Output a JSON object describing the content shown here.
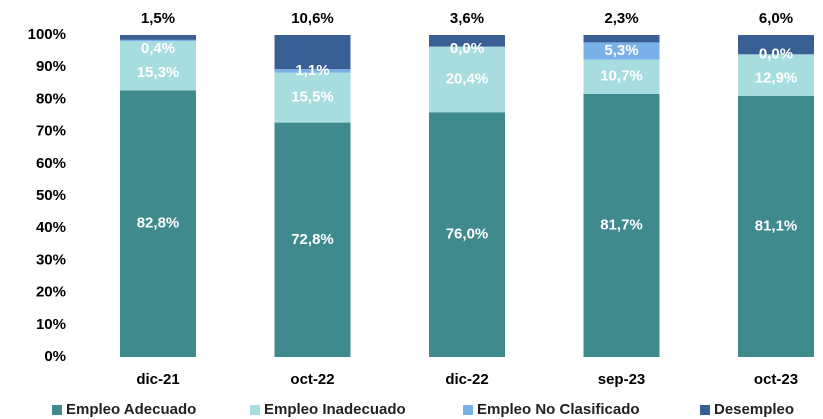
{
  "chart_data": {
    "type": "stacked-bar",
    "categories": [
      "dic-21",
      "oct-22",
      "dic-22",
      "sep-23",
      "oct-23"
    ],
    "series": [
      {
        "name": "Empleo Adecuado",
        "color": "#3f8a8c",
        "values": [
          82.8,
          72.8,
          76.0,
          81.7,
          81.1
        ],
        "value_labels": [
          "82,8%",
          "72,8%",
          "76,0%",
          "81,7%",
          "81,1%"
        ]
      },
      {
        "name": "Empleo Inadecuado",
        "color": "#a8dde0",
        "values": [
          15.3,
          15.5,
          20.4,
          10.7,
          12.9
        ],
        "value_labels": [
          "15,3%",
          "15,5%",
          "20,4%",
          "10,7%",
          "12,9%"
        ]
      },
      {
        "name": "Empleo No Clasificado",
        "color": "#7ab0e8",
        "values": [
          0.4,
          1.1,
          0.0,
          5.3,
          0.0
        ],
        "value_labels": [
          "0,4%",
          "1,1%",
          "0,0%",
          "5,3%",
          "0,0%"
        ]
      },
      {
        "name": "Desempleo",
        "color": "#3a5f95",
        "values": [
          1.5,
          10.6,
          3.6,
          2.3,
          6.0
        ],
        "value_labels": [
          "1,5%",
          "10,6%",
          "3,6%",
          "2,3%",
          "6,0%"
        ]
      }
    ],
    "ylim": [
      0,
      100
    ],
    "yticks": [
      {
        "value": 0,
        "label": "0%"
      },
      {
        "value": 10,
        "label": "10%"
      },
      {
        "value": 20,
        "label": "20%"
      },
      {
        "value": 30,
        "label": "30%"
      },
      {
        "value": 40,
        "label": "40%"
      },
      {
        "value": 50,
        "label": "50%"
      },
      {
        "value": 60,
        "label": "60%"
      },
      {
        "value": 70,
        "label": "70%"
      },
      {
        "value": 80,
        "label": "80%"
      },
      {
        "value": 90,
        "label": "90%"
      },
      {
        "value": 100,
        "label": "100%"
      }
    ],
    "legend": "bottom"
  }
}
